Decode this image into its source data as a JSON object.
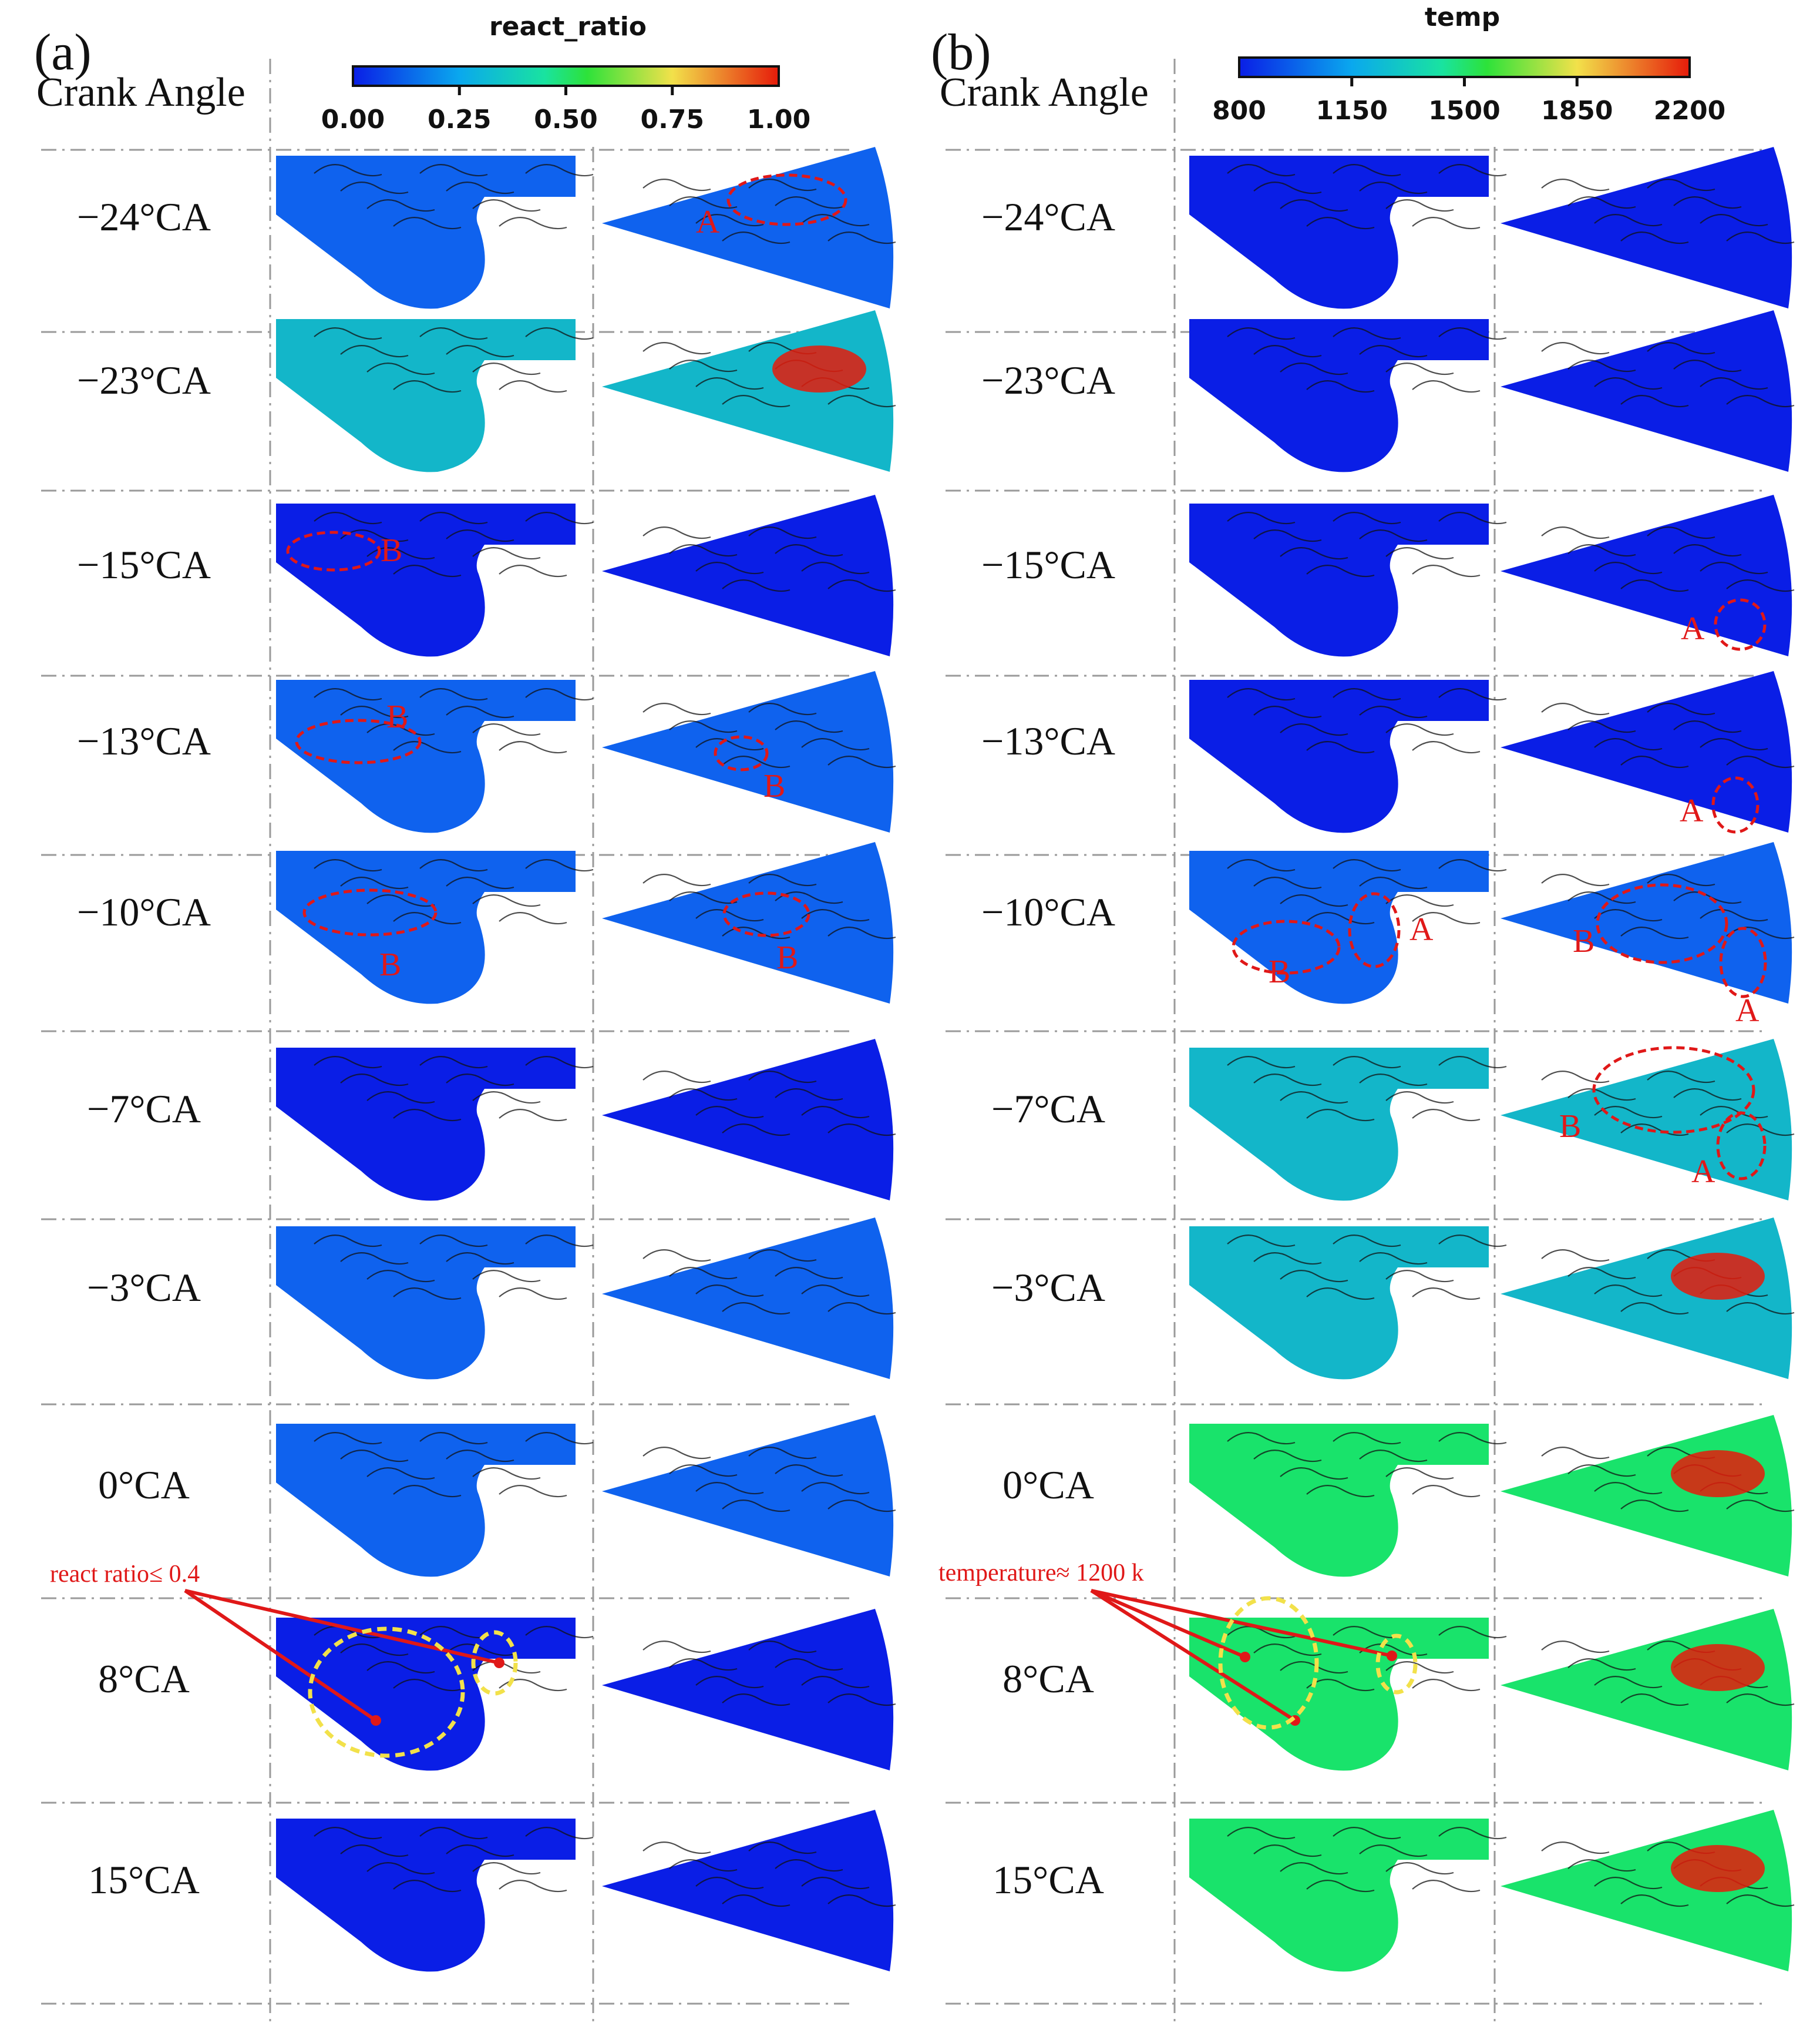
{
  "panel_a": {
    "tag": "(a)",
    "crank_label": "Crank Angle",
    "colorbar": {
      "title": "react_ratio",
      "ticks": [
        "0.00",
        "0.25",
        "0.50",
        "0.75",
        "1.00"
      ]
    },
    "rows": [
      {
        "angle": "−24°CA",
        "level": 0.15
      },
      {
        "angle": "−23°CA",
        "level": 0.35
      },
      {
        "angle": "−15°CA",
        "level": 0.1
      },
      {
        "angle": "−13°CA",
        "level": 0.15
      },
      {
        "angle": "−10°CA",
        "level": 0.15
      },
      {
        "angle": "−7°CA",
        "level": 0.1
      },
      {
        "angle": "−3°CA",
        "level": 0.2
      },
      {
        "angle": "0°CA",
        "level": 0.2
      },
      {
        "angle": "8°CA",
        "level": 0.08
      },
      {
        "angle": "15°CA",
        "level": 0.02
      }
    ],
    "markers": {
      "A": "A",
      "B": "B"
    },
    "callout": "react ratio≤ 0.4"
  },
  "panel_b": {
    "tag": "(b)",
    "crank_label": "Crank Angle",
    "colorbar": {
      "title": "temp",
      "ticks": [
        "800",
        "1150",
        "1500",
        "1850",
        "2200"
      ]
    },
    "rows": [
      {
        "angle": "−24°CA",
        "level": 0.02
      },
      {
        "angle": "−23°CA",
        "level": 0.02
      },
      {
        "angle": "−15°CA",
        "level": 0.05
      },
      {
        "angle": "−13°CA",
        "level": 0.05
      },
      {
        "angle": "−10°CA",
        "level": 0.25
      },
      {
        "angle": "−7°CA",
        "level": 0.3
      },
      {
        "angle": "−3°CA",
        "level": 0.45
      },
      {
        "angle": "0°CA",
        "level": 0.55
      },
      {
        "angle": "8°CA",
        "level": 0.6
      },
      {
        "angle": "15°CA",
        "level": 0.55
      }
    ],
    "markers": {
      "A": "A",
      "B": "B"
    },
    "callout": "temperature≈ 1200 k"
  },
  "colors": {
    "low": "#0a1ee6",
    "mid": "#19e36b",
    "high": "#e61b0a",
    "annotation": "#e01818",
    "highlight": "#f2e14a"
  }
}
